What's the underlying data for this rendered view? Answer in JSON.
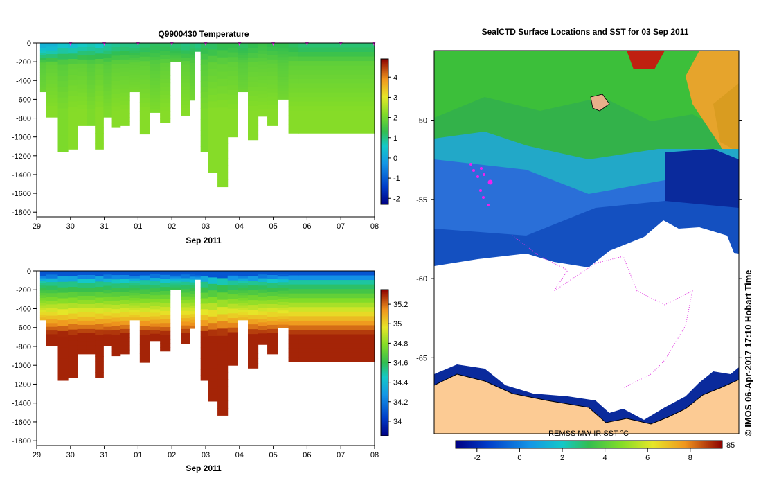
{
  "chart_data": [
    {
      "type": "heatmap",
      "title": "Q9900430  Temperature",
      "xlabel": "Sep 2011",
      "ylabel": "",
      "x_tick_labels": [
        "29",
        "30",
        "31",
        "01",
        "02",
        "03",
        "04",
        "05",
        "06",
        "07",
        "08"
      ],
      "x_range_days": [
        0,
        10
      ],
      "y_tick_labels": [
        "0",
        "-200",
        "-400",
        "-600",
        "-800",
        "-1000",
        "-1200",
        "-1400",
        "-1600",
        "-1800"
      ],
      "ylim": [
        -1850,
        0
      ],
      "colorbar": {
        "min": -2.3,
        "max": 4.9,
        "tick_labels": [
          "4",
          "3",
          "2",
          "1",
          "0",
          "-1",
          "-2"
        ],
        "tick_values": [
          4,
          3,
          2,
          1,
          0,
          -1,
          -2
        ]
      },
      "profile_times_days": [
        0.1,
        0.45,
        0.8,
        1.05,
        1.35,
        1.6,
        1.85,
        2.1,
        2.35,
        2.6,
        2.9,
        3.2,
        3.5,
        3.8,
        4.1,
        4.45,
        4.6,
        4.75,
        4.95,
        5.2,
        5.5,
        5.8,
        6.1,
        6.4,
        6.7,
        6.95,
        7.3,
        7.6,
        7.9
      ],
      "profile_max_depth_m": [
        -520,
        -790,
        -1160,
        -1130,
        -880,
        -880,
        -1130,
        -790,
        -900,
        -880,
        -520,
        -970,
        -740,
        -850,
        -200,
        -770,
        -610,
        -90,
        -1160,
        -1380,
        -1530,
        -1000,
        -520,
        -1030,
        -780,
        -880,
        -600,
        -960,
        -960
      ],
      "surface_temp_c": [
        0.2,
        0.2,
        0.5,
        0.4,
        0.6,
        0.7,
        0.6,
        0.8,
        0.9,
        1.0,
        1.0,
        1.1,
        1.2,
        1.2,
        1.1,
        1.0,
        1.1,
        1.0,
        1.2,
        1.2,
        1.3,
        1.3,
        1.2,
        1.3,
        1.4,
        1.3,
        1.3,
        1.2,
        1.1
      ],
      "deep_temp_c": [
        2.1,
        2.2,
        2.1,
        2.2,
        2.2,
        2.1,
        2.2,
        2.1,
        2.2,
        2.2,
        2.2,
        2.2,
        2.1,
        2.2,
        2.2,
        2.2,
        2.1,
        2.2,
        2.1,
        2.2,
        2.2,
        2.2,
        2.1,
        2.2,
        2.2,
        2.2,
        2.1,
        2.2,
        2.2
      ],
      "marker_days": [
        1,
        2,
        3,
        4,
        5,
        6,
        7,
        8,
        9,
        9.98
      ]
    },
    {
      "type": "heatmap",
      "title": "",
      "xlabel": "Sep 2011",
      "ylabel": "",
      "x_tick_labels": [
        "29",
        "30",
        "31",
        "01",
        "02",
        "03",
        "04",
        "05",
        "06",
        "07",
        "08"
      ],
      "x_range_days": [
        0,
        10
      ],
      "y_tick_labels": [
        "0",
        "-200",
        "-400",
        "-600",
        "-800",
        "-1000",
        "-1200",
        "-1400",
        "-1600",
        "-1800"
      ],
      "ylim": [
        -1850,
        0
      ],
      "colorbar": {
        "min": 33.85,
        "max": 35.35,
        "tick_labels": [
          "35.2",
          "35",
          "34.8",
          "34.6",
          "34.4",
          "34.2",
          "34"
        ],
        "tick_values": [
          35.2,
          35.0,
          34.8,
          34.6,
          34.4,
          34.2,
          34.0
        ]
      },
      "variable": "salinity",
      "profile_times_days": [
        0.1,
        0.45,
        0.8,
        1.05,
        1.35,
        1.6,
        1.85,
        2.1,
        2.35,
        2.6,
        2.9,
        3.2,
        3.5,
        3.8,
        4.1,
        4.45,
        4.6,
        4.75,
        4.95,
        5.2,
        5.5,
        5.8,
        6.1,
        6.4,
        6.7,
        6.95,
        7.3,
        7.6,
        7.9
      ],
      "profile_max_depth_m": [
        -520,
        -790,
        -1160,
        -1130,
        -880,
        -880,
        -1130,
        -790,
        -900,
        -880,
        -520,
        -970,
        -740,
        -850,
        -200,
        -770,
        -610,
        -90,
        -1160,
        -1380,
        -1530,
        -1000,
        -520,
        -1030,
        -780,
        -880,
        -600,
        -960,
        -960
      ],
      "surface_value": 34.1,
      "deep_value": 35.3
    },
    {
      "type": "heatmap",
      "title": "SealCTD Surface Locations and SST for 03 Sep 2011",
      "xlabel": "",
      "ylabel": "",
      "y_tick_labels": [
        "-50",
        "-55",
        "-60",
        "-65"
      ],
      "y_tick_values": [
        -50,
        -55,
        -60,
        -65
      ],
      "ylim": [
        -69.8,
        -45.6
      ],
      "colorbar": {
        "label": "REMSS MW-IR SST °C",
        "min": -3,
        "max": 9.5,
        "tick_labels": [
          "-2",
          "0",
          "2",
          "4",
          "6",
          "8"
        ],
        "tick_values": [
          -2,
          0,
          2,
          4,
          6,
          8
        ],
        "end_label": "85"
      },
      "credit": "© IMOS 06-Apr-2017 17:10 Hobart Time"
    }
  ]
}
